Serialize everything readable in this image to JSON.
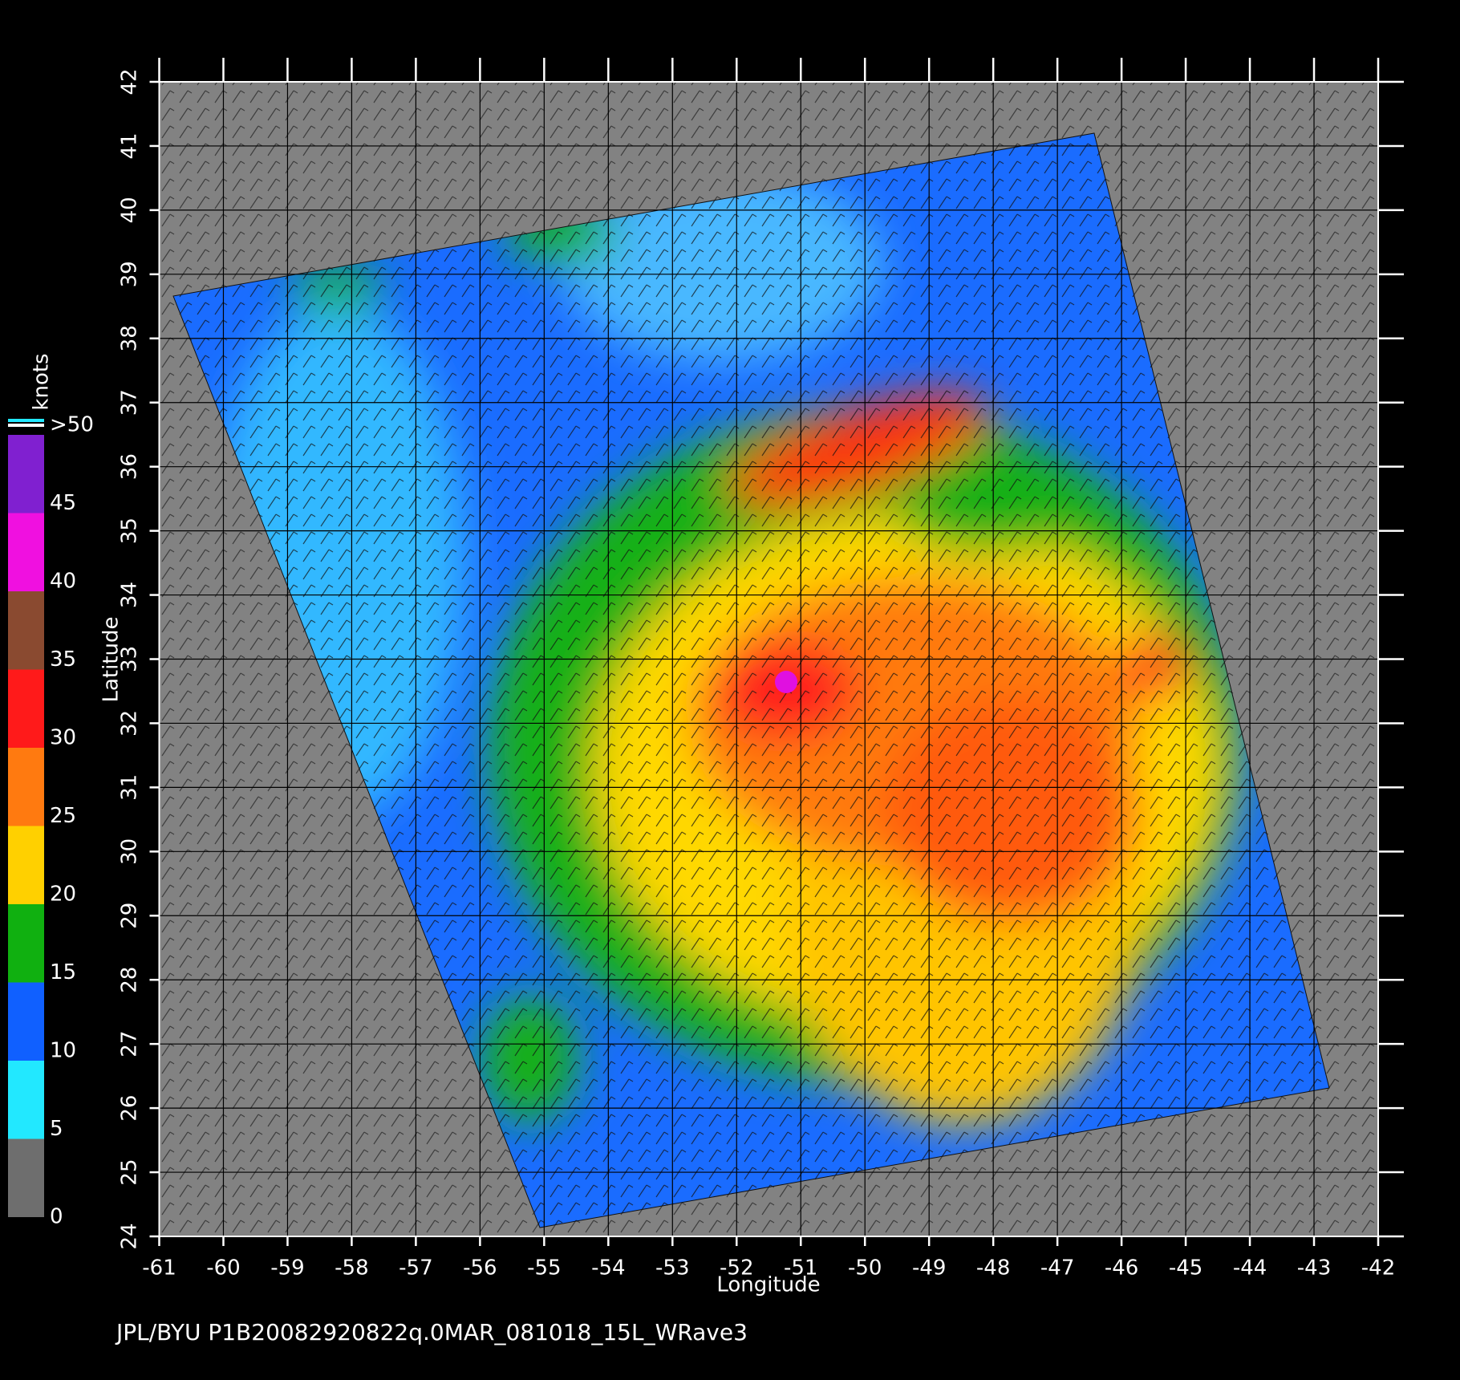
{
  "map": {
    "xlabel": "Longitude",
    "ylabel": "Latitude",
    "xlim": [
      -61,
      -42
    ],
    "ylim": [
      24,
      42
    ],
    "xticks": [
      -61,
      -60,
      -59,
      -58,
      -57,
      -56,
      -55,
      -54,
      -53,
      -52,
      -51,
      -50,
      -49,
      -48,
      -47,
      -46,
      -45,
      -44,
      -43,
      -42
    ],
    "yticks": [
      24,
      25,
      26,
      27,
      28,
      29,
      30,
      31,
      32,
      33,
      34,
      35,
      36,
      37,
      38,
      39,
      40,
      41,
      42
    ],
    "grid": true
  },
  "colorbar": {
    "title": "knots",
    "ticks": [
      0,
      5,
      10,
      15,
      20,
      25,
      30,
      35,
      40,
      45,
      {
        "value": 50,
        "label": ">50"
      }
    ],
    "colors": [
      "#6e6e6e",
      "#22e8ff",
      "#1060ff",
      "#10b010",
      "#ffd000",
      "#ff7a10",
      "#ff1a1a",
      "#8a4a30",
      "#f010e0",
      "#8020d0"
    ]
  },
  "footer": "JPL/BYU  P1B20082920822q.0MAR_081018_15L_WRave3"
}
